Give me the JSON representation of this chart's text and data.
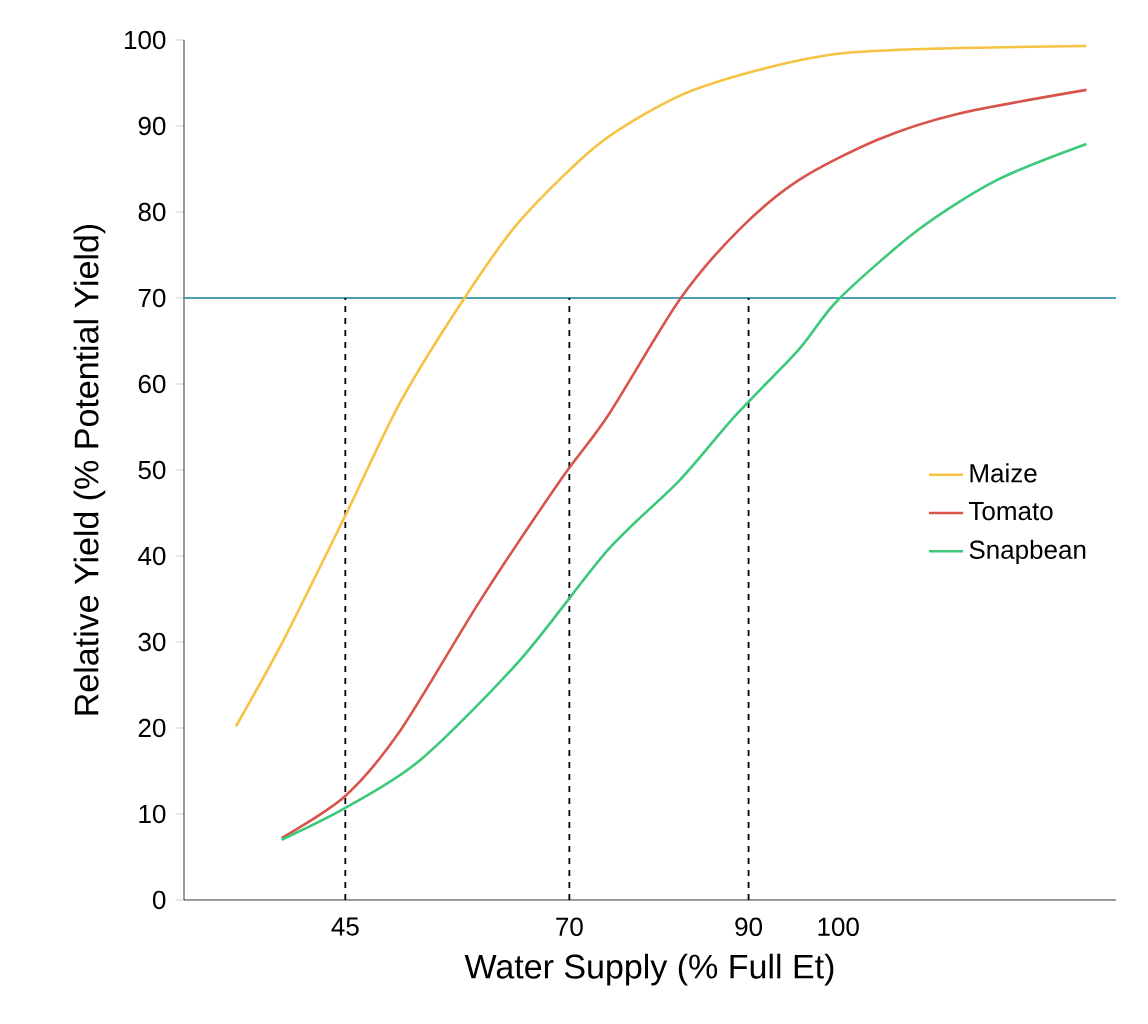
{
  "chart_data": {
    "type": "line",
    "xlabel": "Water Supply (% Full Et)",
    "ylabel": "Relative Yield (% Potential Yield)",
    "xlim": [
      27,
      131
    ],
    "ylim": [
      0,
      100
    ],
    "xticks": [
      45,
      70,
      90,
      100
    ],
    "yticks": [
      0,
      10,
      20,
      30,
      40,
      50,
      60,
      70,
      80,
      90,
      100
    ],
    "grid": false,
    "legend": "right",
    "marker": "none",
    "series": [
      {
        "name": "Maize",
        "color": "#f5c242",
        "x": [
          32.8,
          37.9,
          45,
          51.2,
          58.3,
          64.5,
          73.4,
          82.3,
          91.1,
          100,
          111.1,
          127.7
        ],
        "values": [
          20.2,
          29.8,
          44.7,
          58,
          70,
          79,
          88,
          93.5,
          96.5,
          98.4,
          99,
          99.3
        ]
      },
      {
        "name": "Tomato",
        "color": "#d9534a",
        "x": [
          37.9,
          45,
          51.2,
          60.1,
          69,
          74.3,
          82.3,
          88.9,
          95.6,
          104.4,
          113.3,
          127.7
        ],
        "values": [
          7.2,
          12.1,
          19.8,
          34.9,
          48.8,
          56.3,
          69.8,
          77.9,
          83.7,
          88.4,
          91.4,
          94.2
        ]
      },
      {
        "name": "Snapbean",
        "color": "#3cc97a",
        "x": [
          37.9,
          45,
          53.4,
          64.5,
          74.3,
          82.3,
          88.5,
          95.6,
          100,
          108.9,
          117.7,
          127.7
        ],
        "values": [
          7,
          10.7,
          16.3,
          27.9,
          40.7,
          48.8,
          56.3,
          64,
          69.8,
          77.9,
          83.7,
          87.9
        ]
      }
    ],
    "ref_lines": [
      {
        "axis": "y",
        "value": 70,
        "color": "#4a9fb0"
      },
      {
        "axis": "x",
        "value": 45,
        "color": "#000000",
        "line_style": "dashed"
      },
      {
        "axis": "x",
        "value": 70,
        "color": "#000000",
        "line_style": "dashed"
      },
      {
        "axis": "x",
        "value": 90,
        "color": "#000000",
        "line_style": "dashed"
      }
    ]
  }
}
